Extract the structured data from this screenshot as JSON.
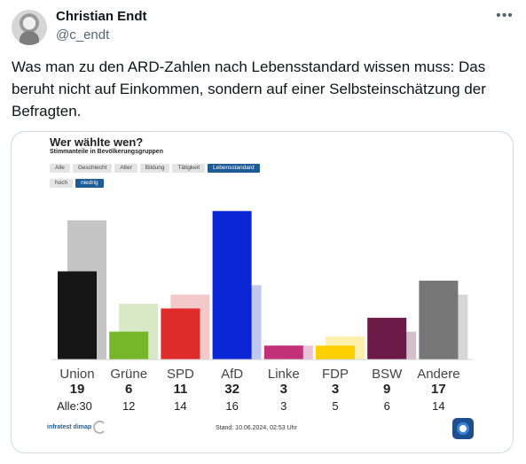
{
  "author": {
    "name": "Christian Endt",
    "handle": "@c_endt"
  },
  "menu_icon": "more-horizontal-icon",
  "tweet": {
    "text": "Was man zu den ARD-Zahlen nach Lebensstandard wissen muss: Das beruht nicht auf Einkommen, sondern auf einer Selbsteinschätzung der Befragten."
  },
  "media": {
    "title": "Wer wählte wen?",
    "subtitle": "Stimmanteile in Bevölkerungsgruppen",
    "filters": [
      "Alle",
      "Geschlecht",
      "Alter",
      "Bildung",
      "Tätigkeit",
      "Lebensstandard"
    ],
    "filters_active": "Lebensstandard",
    "subfilters": [
      "hoch",
      "niedrig"
    ],
    "subfilters_active": "niedrig",
    "alle_prefix": "Alle:",
    "footer_source": "infratest dimap",
    "footer_stand": "Stand: 10.06.2024, 02:53 Uhr"
  },
  "chart_data": {
    "type": "bar",
    "title": "Wer wählte wen?",
    "subtitle": "Stimmanteile in Bevölkerungsgruppen",
    "categories": [
      "Union",
      "Grüne",
      "SPD",
      "AfD",
      "Linke",
      "FDP",
      "BSW",
      "Andere"
    ],
    "series": [
      {
        "name": "niedrig",
        "values": [
          19,
          6,
          11,
          32,
          3,
          3,
          9,
          17
        ]
      },
      {
        "name": "Alle",
        "values": [
          30,
          12,
          14,
          16,
          3,
          5,
          6,
          14
        ]
      }
    ],
    "colors": [
      "#151515",
      "#76b72a",
      "#e02b2b",
      "#0b26d4",
      "#c2307a",
      "#ffd000",
      "#6c1a47",
      "#777777"
    ],
    "colors_light": [
      "#c4c4c4",
      "#d9e8c6",
      "#f3c9c9",
      "#c0c8f0",
      "#ecc3d6",
      "#fff0b0",
      "#d4c0cb",
      "#d7d7d7"
    ],
    "ylim": [
      0,
      33
    ]
  }
}
